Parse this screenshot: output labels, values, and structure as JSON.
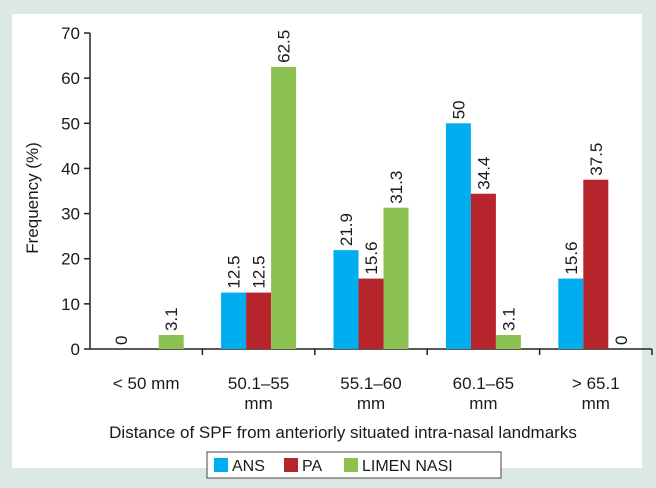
{
  "chart_data": {
    "type": "bar",
    "title": "",
    "xlabel": "Distance of SPF from anteriorly situated intra-nasal landmarks",
    "ylabel": "Frequency (%)",
    "ylim": [
      0,
      70
    ],
    "yticks": [
      0,
      10,
      20,
      30,
      40,
      50,
      60,
      70
    ],
    "grid": false,
    "legend_position": "bottom-center",
    "categories": [
      [
        "< 50 mm"
      ],
      [
        "50.1–55",
        "mm"
      ],
      [
        "55.1–60",
        "mm"
      ],
      [
        "60.1–65",
        "mm"
      ],
      [
        "> 65.1",
        "mm"
      ]
    ],
    "series": [
      {
        "name": "ANS",
        "color": "#00aeef",
        "values": [
          0,
          12.5,
          21.9,
          50,
          15.6
        ],
        "labels": [
          "0",
          "12.5",
          "21.9",
          "50",
          "15.6"
        ]
      },
      {
        "name": "PA",
        "color": "#b5252b",
        "values": [
          null,
          12.5,
          15.6,
          34.4,
          37.5
        ],
        "labels": [
          "",
          "12.5",
          "15.6",
          "34.4",
          "37.5"
        ]
      },
      {
        "name": "LIMEN NASI",
        "color": "#8cc152",
        "values": [
          3.1,
          62.5,
          31.3,
          3.1,
          0
        ],
        "labels": [
          "3.1",
          "62.5",
          "31.3",
          "3.1",
          "0"
        ]
      }
    ]
  }
}
